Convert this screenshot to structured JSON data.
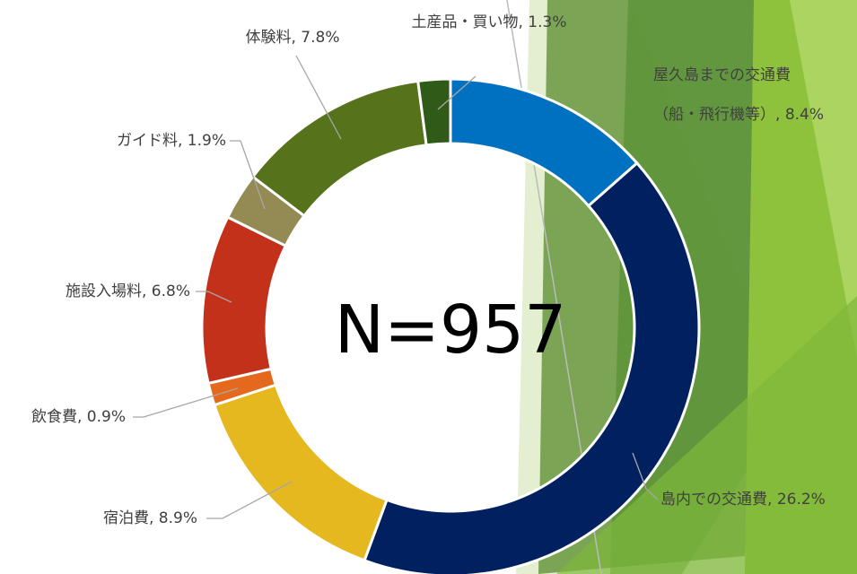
{
  "chart_data": {
    "type": "donut",
    "center_text": "N=957",
    "categories": [
      "屋久島までの交通費（船・飛行機等）",
      "島内での交通費",
      "宿泊費",
      "飲食費",
      "施設入場料",
      "ガイド料",
      "体験料",
      "土産品・買い物"
    ],
    "values": [
      8.4,
      26.2,
      8.9,
      0.9,
      6.8,
      1.9,
      7.8,
      1.3
    ],
    "value_labels": [
      "8.4%",
      "26.2%",
      "8.9%",
      "0.9%",
      "6.8%",
      "1.9%",
      "7.8%",
      "1.3%"
    ],
    "label_separator": ", ",
    "colors": [
      "#0070c0",
      "#002060",
      "#e6b820",
      "#e5691c",
      "#c4311b",
      "#948a54",
      "#56731c",
      "#2f5a17"
    ]
  }
}
